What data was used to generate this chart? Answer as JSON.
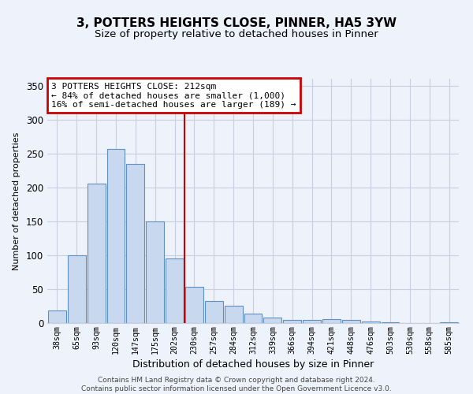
{
  "title": "3, POTTERS HEIGHTS CLOSE, PINNER, HA5 3YW",
  "subtitle": "Size of property relative to detached houses in Pinner",
  "xlabel": "Distribution of detached houses by size in Pinner",
  "ylabel": "Number of detached properties",
  "bar_labels": [
    "38sqm",
    "65sqm",
    "93sqm",
    "120sqm",
    "147sqm",
    "175sqm",
    "202sqm",
    "230sqm",
    "257sqm",
    "284sqm",
    "312sqm",
    "339sqm",
    "366sqm",
    "394sqm",
    "421sqm",
    "448sqm",
    "476sqm",
    "503sqm",
    "530sqm",
    "558sqm",
    "585sqm"
  ],
  "bar_values": [
    19,
    100,
    205,
    257,
    235,
    150,
    95,
    53,
    33,
    25,
    14,
    8,
    5,
    5,
    6,
    5,
    2,
    1,
    0,
    0,
    1
  ],
  "bar_color": "#c8d8ee",
  "bar_edge_color": "#6090c0",
  "vline_x_idx": 6,
  "vline_color": "#cc0000",
  "ylim": [
    0,
    360
  ],
  "yticks": [
    0,
    50,
    100,
    150,
    200,
    250,
    300,
    350
  ],
  "annotation_title": "3 POTTERS HEIGHTS CLOSE: 212sqm",
  "annotation_line1": "← 84% of detached houses are smaller (1,000)",
  "annotation_line2": "16% of semi-detached houses are larger (189) →",
  "annotation_box_color": "#ffffff",
  "annotation_box_edge": "#cc0000",
  "footer_line1": "Contains HM Land Registry data © Crown copyright and database right 2024.",
  "footer_line2": "Contains public sector information licensed under the Open Government Licence v3.0.",
  "background_color": "#eef2fa",
  "grid_color": "#c8d0e0",
  "title_fontsize": 11,
  "subtitle_fontsize": 9.5
}
